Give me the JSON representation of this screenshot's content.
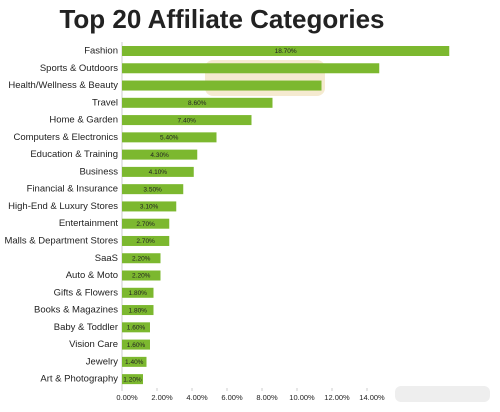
{
  "chart_data": {
    "type": "barh",
    "title": "Top 20 Affiliate Categories",
    "categories": [
      "Fashion",
      "Sports & Outdoors",
      "Health/Wellness & Beauty",
      "Travel",
      "Home & Garden",
      "Computers & Electronics",
      "Education & Training",
      "Business",
      "Financial & Insurance",
      "High-End & Luxury Stores",
      "Entertainment",
      "Malls & Department Stores",
      "SaaS",
      "Auto & Moto",
      "Gifts & Flowers",
      "Books & Magazines",
      "Baby & Toddler",
      "Vision Care",
      "Jewelry",
      "Art & Photography"
    ],
    "values": [
      18.7,
      14.7,
      11.4,
      8.6,
      7.4,
      5.4,
      4.3,
      4.1,
      3.5,
      3.1,
      2.7,
      2.7,
      2.2,
      2.2,
      1.8,
      1.8,
      1.6,
      1.6,
      1.4,
      1.2
    ],
    "value_labels": [
      "18.70%",
      null,
      null,
      "8.60%",
      "7.40%",
      "5.40%",
      "4.30%",
      "4.10%",
      "3.50%",
      "3.10%",
      "2.70%",
      "2.70%",
      "2.20%",
      "2.20%",
      "1.80%",
      "1.80%",
      "1.60%",
      "1.60%",
      "1.40%",
      "1.20%"
    ],
    "color": "#7cb82f",
    "xlim": [
      0,
      21
    ],
    "xticks": [
      {
        "value": 0,
        "label": "0.00%"
      },
      {
        "value": 2,
        "label": "2.00%"
      },
      {
        "value": 4,
        "label": "4.00%"
      },
      {
        "value": 6,
        "label": "6.00%"
      },
      {
        "value": 8,
        "label": "8.00%"
      },
      {
        "value": 10,
        "label": "10.00%"
      },
      {
        "value": 12,
        "label": "12.00%"
      },
      {
        "value": 14,
        "label": "14.00%"
      }
    ]
  }
}
